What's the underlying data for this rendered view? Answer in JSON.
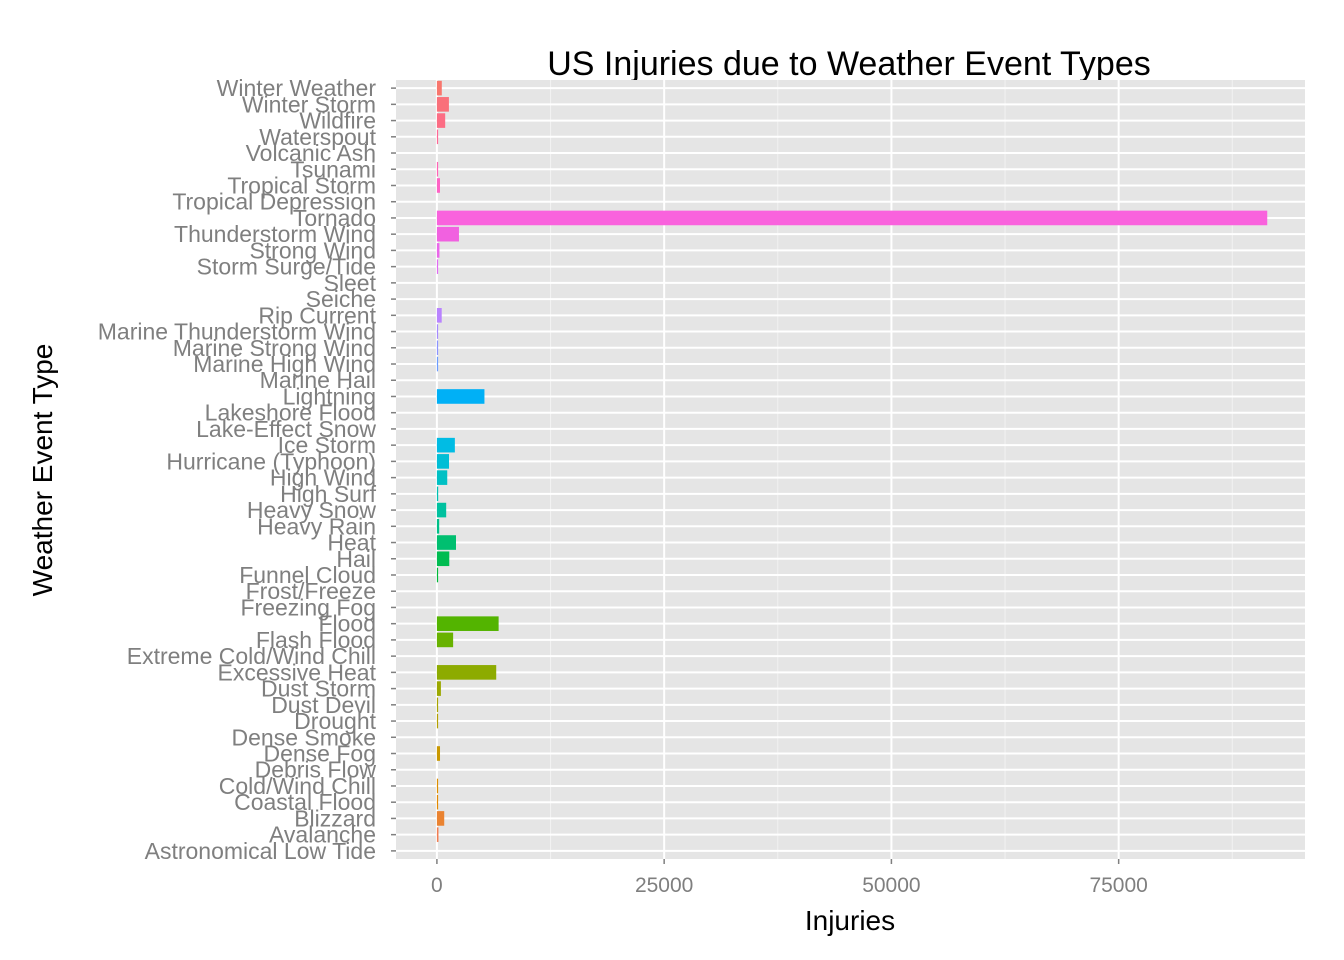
{
  "chart_data": {
    "type": "bar",
    "orientation": "horizontal",
    "title": "US Injuries due to Weather Event Types",
    "xlabel": "Injuries",
    "ylabel": "Weather Event Type",
    "xlim": [
      -4500,
      95500
    ],
    "xticks": [
      0,
      25000,
      50000,
      75000
    ],
    "grid": true,
    "legend": "none",
    "categories": [
      "Astronomical Low Tide",
      "Avalanche",
      "Blizzard",
      "Coastal Flood",
      "Cold/Wind Chill",
      "Debris Flow",
      "Dense Fog",
      "Dense Smoke",
      "Drought",
      "Dust Devil",
      "Dust Storm",
      "Excessive Heat",
      "Extreme Cold/Wind Chill",
      "Flash Flood",
      "Flood",
      "Freezing Fog",
      "Frost/Freeze",
      "Funnel Cloud",
      "Hail",
      "Heat",
      "Heavy Rain",
      "Heavy Snow",
      "High Surf",
      "High Wind",
      "Hurricane (Typhoon)",
      "Ice Storm",
      "Lake-Effect Snow",
      "Lakeshore Flood",
      "Lightning",
      "Marine Hail",
      "Marine High Wind",
      "Marine Strong Wind",
      "Marine Thunderstorm Wind",
      "Rip Current",
      "Seiche",
      "Sleet",
      "Storm Surge/Tide",
      "Strong Wind",
      "Thunderstorm Wind",
      "Tornado",
      "Tropical Depression",
      "Tropical Storm",
      "Tsunami",
      "Volcanic Ash",
      "Waterspout",
      "Wildfire",
      "Winter Storm",
      "Winter Weather"
    ],
    "values": [
      0,
      170,
      805,
      7,
      24,
      0,
      342,
      0,
      4,
      43,
      440,
      6525,
      0,
      1785,
      6789,
      0,
      0,
      3,
      1361,
      2100,
      251,
      1021,
      140,
      1137,
      1333,
      1975,
      0,
      0,
      5230,
      0,
      1,
      5,
      26,
      529,
      0,
      0,
      38,
      280,
      2426,
      91346,
      0,
      340,
      129,
      0,
      29,
      911,
      1321,
      538
    ],
    "bar_colors": [
      "#F8766D",
      "#F27D52",
      "#EA8331",
      "#E38900",
      "#DC8E00",
      "#D39200",
      "#C99800",
      "#BF9C00",
      "#B4A000",
      "#A8A400",
      "#9BA800",
      "#8DAB00",
      "#7CAE00",
      "#68B200",
      "#53B400",
      "#39B600",
      "#00B81A",
      "#00BA38",
      "#00BC51",
      "#00BF70",
      "#00C088",
      "#00C19F",
      "#00C1B2",
      "#00C0C4",
      "#00BED6",
      "#00BCE4",
      "#00B8F0",
      "#00B4F9",
      "#00B0F6",
      "#35A2FF",
      "#6B9BFF",
      "#8B93FF",
      "#A58AFF",
      "#B983FF",
      "#C77CFF",
      "#D572FA",
      "#E16AF3",
      "#EA66EA",
      "#F161E0",
      "#F962DD",
      "#FF61D2",
      "#FF62C5",
      "#FF63B6",
      "#FF65A6",
      "#FF6896",
      "#FC6D84",
      "#F9707A",
      "#F8766D"
    ]
  }
}
